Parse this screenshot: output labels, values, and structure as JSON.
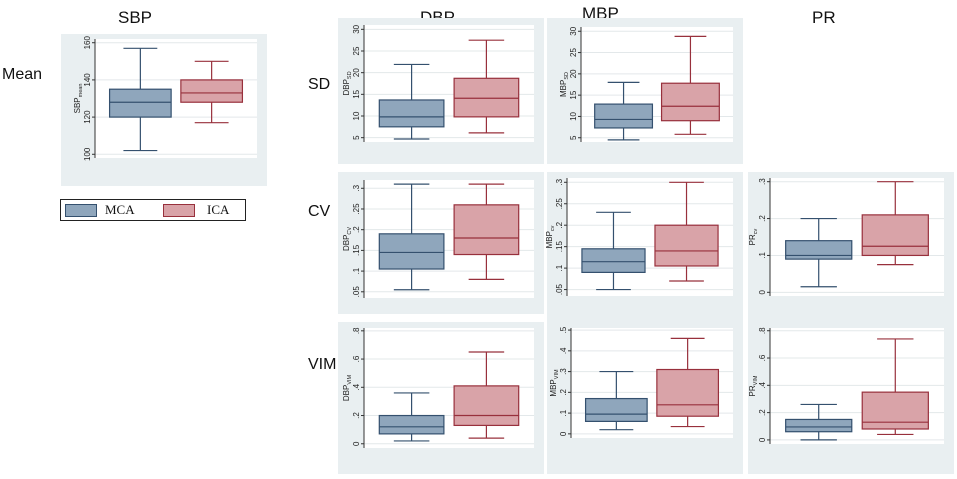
{
  "headers": {
    "sbp": "SBP",
    "dbp": "DBP",
    "mbp": "MBP",
    "pr": "PR"
  },
  "rows": {
    "mean": "Mean",
    "sd": "SD",
    "cv": "CV",
    "vim": "VIM"
  },
  "legend": {
    "group1": "MCA",
    "group2": "ICA"
  },
  "colors": {
    "mca_fill": "#8fa6bc",
    "mca_line": "#34506e",
    "ica_fill": "#d9a3a8",
    "ica_line": "#98303c",
    "panel_bg": "#e9eff1",
    "plot_bg": "#ffffff",
    "grid": "#e3e8ea"
  },
  "chart_data": [
    {
      "id": "sbp-mean",
      "type": "boxplot",
      "ylabel": "SBP",
      "ylabel_sub": "mean",
      "ylim": [
        98,
        162
      ],
      "ticks": [
        100,
        120,
        140,
        160
      ],
      "tick_labels": [
        "100",
        "120",
        "140",
        "160"
      ],
      "series": [
        {
          "name": "MCA",
          "whisker_low": 102,
          "q1": 120,
          "median": 128,
          "q3": 135,
          "whisker_high": 157
        },
        {
          "name": "ICA",
          "whisker_low": 117,
          "q1": 128,
          "median": 133,
          "q3": 140,
          "whisker_high": 150
        }
      ]
    },
    {
      "id": "dbp-sd",
      "type": "boxplot",
      "ylabel": "DBP",
      "ylabel_sub": "SD",
      "ylim": [
        4,
        31
      ],
      "ticks": [
        5,
        10,
        15,
        20,
        25,
        30
      ],
      "tick_labels": [
        "5",
        "10",
        "15",
        "20",
        "25",
        "30"
      ],
      "series": [
        {
          "name": "MCA",
          "whisker_low": 4.7,
          "q1": 7.5,
          "median": 9.8,
          "q3": 13.7,
          "whisker_high": 21.9
        },
        {
          "name": "ICA",
          "whisker_low": 6.1,
          "q1": 9.8,
          "median": 14.1,
          "q3": 18.7,
          "whisker_high": 27.5
        }
      ]
    },
    {
      "id": "mbp-sd",
      "type": "boxplot",
      "ylabel": "MBP",
      "ylabel_sub": "SD",
      "ylim": [
        4,
        31
      ],
      "ticks": [
        5,
        10,
        15,
        20,
        25,
        30
      ],
      "tick_labels": [
        "5",
        "10",
        "15",
        "20",
        "25",
        "30"
      ],
      "series": [
        {
          "name": "MCA",
          "whisker_low": 4.5,
          "q1": 7.3,
          "median": 9.3,
          "q3": 12.9,
          "whisker_high": 18.0
        },
        {
          "name": "ICA",
          "whisker_low": 5.8,
          "q1": 9.0,
          "median": 12.4,
          "q3": 17.8,
          "whisker_high": 28.8
        }
      ]
    },
    {
      "id": "dbp-cv",
      "type": "boxplot",
      "ylabel": "DBP",
      "ylabel_sub": "CV",
      "ylim": [
        0.035,
        0.32
      ],
      "ticks": [
        0.05,
        0.1,
        0.15,
        0.2,
        0.25,
        0.3
      ],
      "tick_labels": [
        ".05",
        ".1",
        ".15",
        ".2",
        ".25",
        ".3"
      ],
      "series": [
        {
          "name": "MCA",
          "whisker_low": 0.055,
          "q1": 0.105,
          "median": 0.145,
          "q3": 0.19,
          "whisker_high": 0.31
        },
        {
          "name": "ICA",
          "whisker_low": 0.08,
          "q1": 0.14,
          "median": 0.18,
          "q3": 0.26,
          "whisker_high": 0.31
        }
      ]
    },
    {
      "id": "mbp-cv",
      "type": "boxplot",
      "ylabel": "MBP",
      "ylabel_sub": "cv",
      "ylim": [
        0.035,
        0.31
      ],
      "ticks": [
        0.05,
        0.1,
        0.15,
        0.2,
        0.25,
        0.3
      ],
      "tick_labels": [
        ".05",
        ".1",
        ".15",
        ".2",
        ".25",
        ".3"
      ],
      "series": [
        {
          "name": "MCA",
          "whisker_low": 0.05,
          "q1": 0.09,
          "median": 0.115,
          "q3": 0.145,
          "whisker_high": 0.23
        },
        {
          "name": "ICA",
          "whisker_low": 0.07,
          "q1": 0.105,
          "median": 0.14,
          "q3": 0.2,
          "whisker_high": 0.3
        }
      ]
    },
    {
      "id": "pr-cv",
      "type": "boxplot",
      "ylabel": "PR",
      "ylabel_sub": "cv",
      "ylim": [
        -0.01,
        0.31
      ],
      "ticks": [
        0,
        0.1,
        0.2,
        0.3
      ],
      "tick_labels": [
        "0",
        ".1",
        ".2",
        ".3"
      ],
      "series": [
        {
          "name": "MCA",
          "whisker_low": 0.015,
          "q1": 0.09,
          "median": 0.1,
          "q3": 0.14,
          "whisker_high": 0.2
        },
        {
          "name": "ICA",
          "whisker_low": 0.075,
          "q1": 0.1,
          "median": 0.125,
          "q3": 0.21,
          "whisker_high": 0.3
        }
      ]
    },
    {
      "id": "dbp-vim",
      "type": "boxplot",
      "ylabel": "DBP",
      "ylabel_sub": "VIM",
      "ylim": [
        -0.03,
        0.82
      ],
      "ticks": [
        0,
        0.2,
        0.4,
        0.6,
        0.8
      ],
      "tick_labels": [
        "0",
        ".2",
        ".4",
        ".6",
        ".8"
      ],
      "series": [
        {
          "name": "MCA",
          "whisker_low": 0.02,
          "q1": 0.07,
          "median": 0.12,
          "q3": 0.2,
          "whisker_high": 0.36
        },
        {
          "name": "ICA",
          "whisker_low": 0.04,
          "q1": 0.13,
          "median": 0.2,
          "q3": 0.41,
          "whisker_high": 0.65
        }
      ]
    },
    {
      "id": "mbp-vim",
      "type": "boxplot",
      "ylabel": "MBP",
      "ylabel_sub": "VIM",
      "ylim": [
        -0.02,
        0.51
      ],
      "ticks": [
        0,
        0.1,
        0.2,
        0.3,
        0.4,
        0.5
      ],
      "tick_labels": [
        "0",
        ".1",
        ".2",
        ".3",
        ".4",
        ".5"
      ],
      "series": [
        {
          "name": "MCA",
          "whisker_low": 0.02,
          "q1": 0.06,
          "median": 0.095,
          "q3": 0.17,
          "whisker_high": 0.3
        },
        {
          "name": "ICA",
          "whisker_low": 0.035,
          "q1": 0.085,
          "median": 0.14,
          "q3": 0.31,
          "whisker_high": 0.46
        }
      ]
    },
    {
      "id": "pr-vim",
      "type": "boxplot",
      "ylabel": "PR",
      "ylabel_sub": "VIM",
      "ylim": [
        -0.03,
        0.82
      ],
      "ticks": [
        0,
        0.2,
        0.4,
        0.6,
        0.8
      ],
      "tick_labels": [
        "0",
        ".2",
        ".4",
        ".6",
        ".8"
      ],
      "series": [
        {
          "name": "MCA",
          "whisker_low": 0.0,
          "q1": 0.06,
          "median": 0.095,
          "q3": 0.15,
          "whisker_high": 0.26
        },
        {
          "name": "ICA",
          "whisker_low": 0.04,
          "q1": 0.08,
          "median": 0.13,
          "q3": 0.35,
          "whisker_high": 0.74
        }
      ]
    }
  ]
}
